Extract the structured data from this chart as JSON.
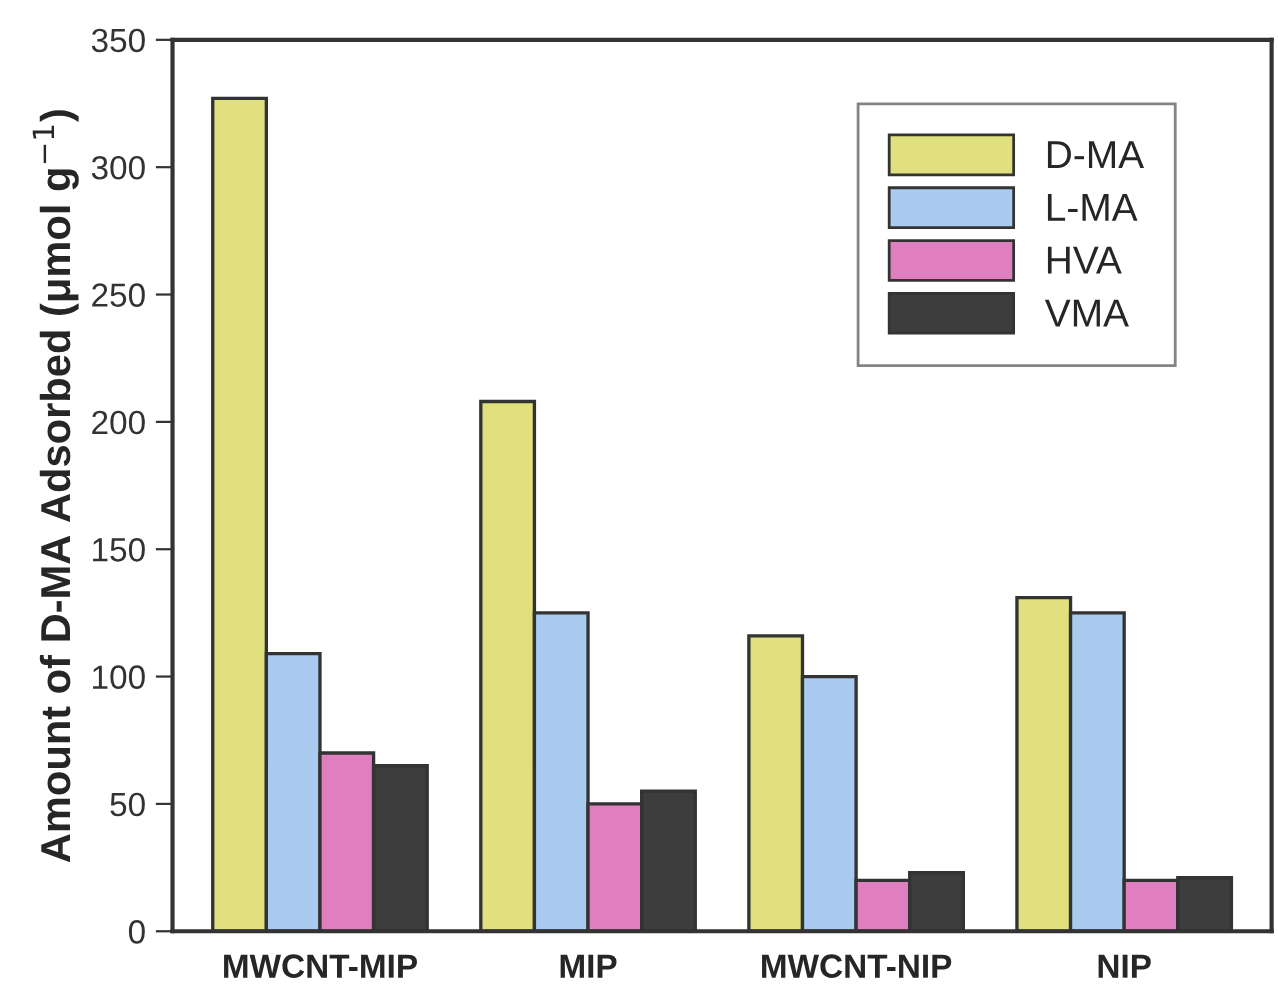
{
  "chart_data": {
    "type": "bar",
    "ylabel": "Amount of D-MA Adsorbed (μmol g$^{−1}$)",
    "categories": [
      "MWCNT-MIP",
      "MIP",
      "MWCNT-NIP",
      "NIP"
    ],
    "series": [
      {
        "name": "D-MA",
        "color": "#e0e07e",
        "values": [
          327,
          208,
          116,
          131
        ]
      },
      {
        "name": "L-MA",
        "color": "#a8cbef",
        "values": [
          109,
          125,
          100,
          125
        ]
      },
      {
        "name": "HVA",
        "color": "#e07fc0",
        "values": [
          70,
          50,
          20,
          20
        ]
      },
      {
        "name": "VMA",
        "color": "#3d3d3d",
        "values": [
          65,
          55,
          23,
          21
        ]
      }
    ],
    "ylim": [
      0,
      350
    ],
    "yticks": [
      0,
      50,
      100,
      150,
      200,
      250,
      300,
      350
    ],
    "grid": false,
    "legend": "top right"
  }
}
